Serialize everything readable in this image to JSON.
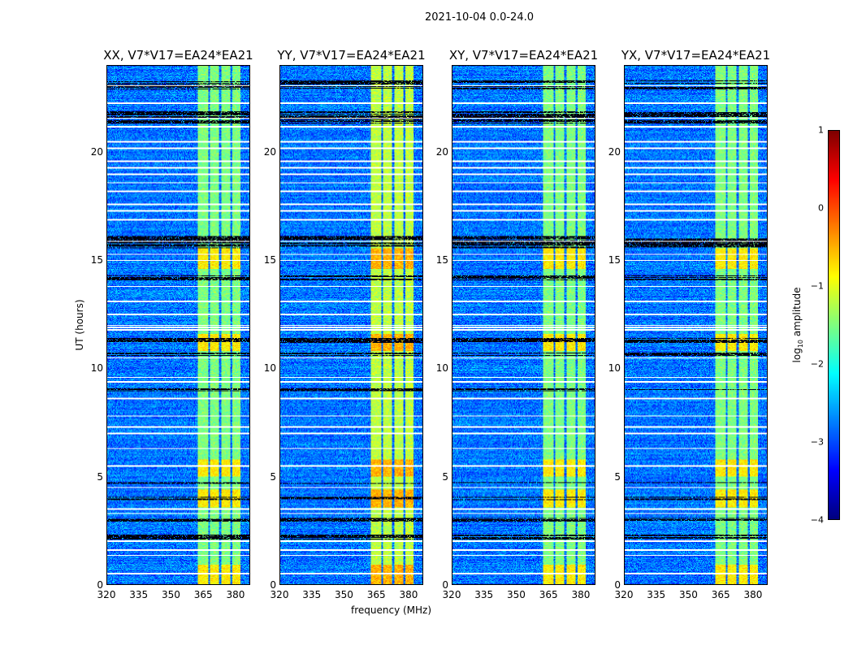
{
  "chart_data": {
    "type": "heatmap",
    "suptitle": "2021-10-04 0.0-24.0",
    "panels": [
      {
        "title": "XX, V7*V17=EA24*EA21"
      },
      {
        "title": "YY, V7*V17=EA24*EA21"
      },
      {
        "title": "XY, V7*V17=EA24*EA21"
      },
      {
        "title": "YX, V7*V17=EA24*EA21"
      }
    ],
    "xlabel": "frequency (MHz)",
    "ylabel": "UT (hours)",
    "xlim": [
      320,
      386.8
    ],
    "ylim": [
      0,
      24
    ],
    "xticks": [
      "320",
      "335",
      "350",
      "365",
      "380"
    ],
    "xtick_values": [
      320,
      335,
      350,
      365,
      380
    ],
    "yticks": [
      "0",
      "5",
      "10",
      "15",
      "20"
    ],
    "ytick_values": [
      0,
      5,
      10,
      15,
      20
    ],
    "colorbar": {
      "label": "log10 amplitude",
      "range": [
        -4,
        1
      ],
      "colormap": "jet",
      "ticks": [
        "−4",
        "−3",
        "−2",
        "−1",
        "0",
        "1"
      ],
      "tick_values": [
        -4,
        -3,
        -2,
        -1,
        0,
        1
      ]
    },
    "background_level": -2.8,
    "rfi_band_mhz": [
      [
        362.3,
        367.2
      ],
      [
        368.2,
        372.2
      ],
      [
        373.3,
        377.6
      ],
      [
        378.6,
        382.6
      ]
    ],
    "rfi_level": -1.5,
    "flagged_hours_white": [
      0.5,
      1.35,
      1.6,
      2.0,
      3.3,
      3.5,
      4.5,
      5.5,
      6.3,
      7.0,
      7.3,
      7.8,
      8.6,
      9.4,
      9.6,
      10.5,
      11.8,
      11.9,
      12.0,
      12.5,
      13.1,
      13.8,
      15.0,
      15.3,
      15.9,
      16.9,
      17.3,
      17.6,
      18.2,
      18.6,
      19.0,
      19.3,
      19.6,
      20.2,
      20.5,
      21.2,
      21.6,
      22.3,
      23.1
    ],
    "black_hours": [
      [
        2.1,
        2.3
      ],
      [
        2.9,
        3.1
      ],
      [
        3.9,
        4.05
      ],
      [
        4.65,
        4.75
      ],
      [
        8.95,
        9.1
      ],
      [
        10.6,
        10.75
      ],
      [
        11.2,
        11.4
      ],
      [
        14.1,
        14.3
      ],
      [
        15.6,
        16.15
      ],
      [
        21.35,
        21.9
      ],
      [
        22.95,
        23.35
      ]
    ],
    "bright_hours": [
      [
        0.0,
        0.9
      ],
      [
        3.6,
        4.4
      ],
      [
        5.0,
        5.8
      ],
      [
        10.8,
        11.6
      ],
      [
        14.6,
        15.6
      ]
    ]
  }
}
